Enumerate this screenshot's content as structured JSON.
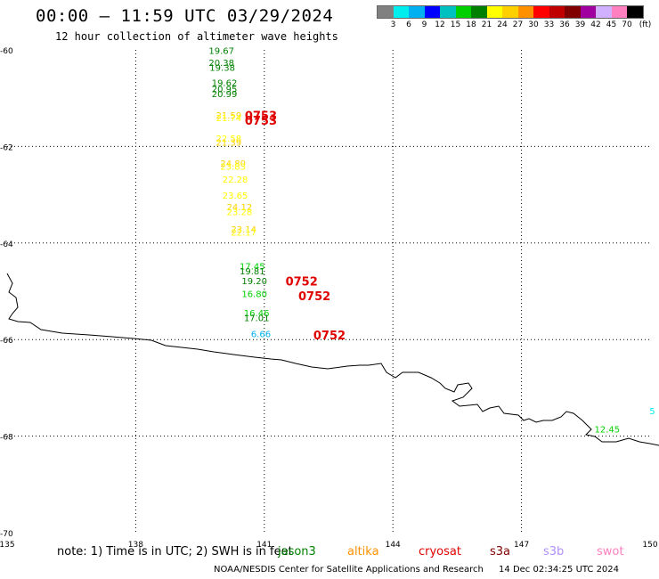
{
  "header": {
    "title": "00:00 – 11:59 UTC 03/29/2024",
    "subtitle": "12 hour collection of altimeter wave heights"
  },
  "legend": {
    "unit": "(ft)",
    "colors": [
      "#808080",
      "#00eeee",
      "#00b0f0",
      "#0000ff",
      "#00c0c0",
      "#00d000",
      "#008000",
      "#ffff00",
      "#ffd000",
      "#ff9000",
      "#ff0000",
      "#c00000",
      "#800000",
      "#a000a0",
      "#d0b0ff",
      "#ff80c0",
      "#000000"
    ],
    "labels": [
      "3",
      "6",
      "9",
      "12",
      "15",
      "18",
      "21",
      "24",
      "27",
      "30",
      "33",
      "36",
      "39",
      "42",
      "45",
      "70"
    ]
  },
  "map": {
    "lon_ticks": [
      "135",
      "138",
      "141",
      "144",
      "147",
      "150"
    ],
    "lat_ticks": [
      "-60",
      "-62",
      "-64",
      "-66",
      "-68",
      "-70"
    ],
    "lon_range": [
      135,
      150
    ],
    "lat_range": [
      -60,
      -70
    ]
  },
  "observations": [
    {
      "lon": 140.0,
      "lat": -60.08,
      "value": "19.67",
      "color": "#008000"
    },
    {
      "lon": 140.0,
      "lat": -60.33,
      "value": "20.38",
      "color": "#008000"
    },
    {
      "lon": 140.02,
      "lat": -60.43,
      "value": "19.38",
      "color": "#008000"
    },
    {
      "lon": 140.07,
      "lat": -60.75,
      "value": "19.62",
      "color": "#008000"
    },
    {
      "lon": 140.07,
      "lat": -60.88,
      "value": "20.95",
      "color": "#008000"
    },
    {
      "lon": 140.07,
      "lat": -60.98,
      "value": "20.99",
      "color": "#008000"
    },
    {
      "lon": 140.17,
      "lat": -61.42,
      "value": "21.59",
      "color": "#ffd000"
    },
    {
      "lon": 140.17,
      "lat": -61.48,
      "value": "21.74",
      "color": "#ffff00"
    },
    {
      "lon": 140.17,
      "lat": -61.9,
      "value": "22.58",
      "color": "#ffff00"
    },
    {
      "lon": 140.17,
      "lat": -61.98,
      "value": "21.39",
      "color": "#ffd000"
    },
    {
      "lon": 140.27,
      "lat": -62.42,
      "value": "24.80",
      "color": "#ffd000"
    },
    {
      "lon": 140.27,
      "lat": -62.48,
      "value": "23.83",
      "color": "#ffff00"
    },
    {
      "lon": 140.32,
      "lat": -62.75,
      "value": "22.28",
      "color": "#ffff00"
    },
    {
      "lon": 140.32,
      "lat": -63.08,
      "value": "23.65",
      "color": "#ffff00"
    },
    {
      "lon": 140.42,
      "lat": -63.32,
      "value": "24.12",
      "color": "#ffd000"
    },
    {
      "lon": 140.42,
      "lat": -63.42,
      "value": "23.28",
      "color": "#ffff00"
    },
    {
      "lon": 140.52,
      "lat": -63.78,
      "value": "23.14",
      "color": "#ffd000"
    },
    {
      "lon": 140.52,
      "lat": -63.85,
      "value": "22.17",
      "color": "#ffff00"
    },
    {
      "lon": 140.72,
      "lat": -64.55,
      "value": "17.45",
      "color": "#00d000"
    },
    {
      "lon": 140.72,
      "lat": -64.65,
      "value": "19.81",
      "color": "#008000"
    },
    {
      "lon": 140.77,
      "lat": -64.85,
      "value": "19.20",
      "color": "#008000"
    },
    {
      "lon": 140.77,
      "lat": -65.12,
      "value": "16.80",
      "color": "#00d000"
    },
    {
      "lon": 140.82,
      "lat": -65.52,
      "value": "16.46",
      "color": "#00d000"
    },
    {
      "lon": 140.82,
      "lat": -65.62,
      "value": "17.01",
      "color": "#008000"
    },
    {
      "lon": 140.92,
      "lat": -65.95,
      "value": "6.66",
      "color": "#00b0f0"
    },
    {
      "lon": 150.05,
      "lat": -67.55,
      "value": "5",
      "color": "#00eeee"
    },
    {
      "lon": 149.0,
      "lat": -67.92,
      "value": "12.45",
      "color": "#00d000"
    }
  ],
  "pass_labels": [
    {
      "lon": 140.92,
      "lat": -61.45,
      "text": "0753",
      "color": "#e00000"
    },
    {
      "lon": 140.92,
      "lat": -61.55,
      "text": "0753",
      "color": "#e00000"
    },
    {
      "lon": 141.87,
      "lat": -64.88,
      "text": "0752",
      "color": "#e00000"
    },
    {
      "lon": 142.17,
      "lat": -65.18,
      "text": "0752",
      "color": "#e00000"
    },
    {
      "lon": 142.52,
      "lat": -66.0,
      "text": "0752",
      "color": "#e00000"
    }
  ],
  "coastline_note": "Antarctic coastline",
  "note": {
    "text": "note:  1) Time is in UTC; 2) SWH is in feet",
    "satellites": [
      {
        "name": "jason3",
        "color": "#008000"
      },
      {
        "name": "altika",
        "color": "#ff9000"
      },
      {
        "name": "cryosat",
        "color": "#e00000"
      },
      {
        "name": "s3a",
        "color": "#800000"
      },
      {
        "name": "s3b",
        "color": "#b090ff"
      },
      {
        "name": "swot",
        "color": "#ff80c0"
      }
    ]
  },
  "footer": {
    "agency": "NOAA/NESDIS Center for Satellite Applications and Research",
    "timestamp": "14 Dec 02:34:25 UTC 2024"
  }
}
